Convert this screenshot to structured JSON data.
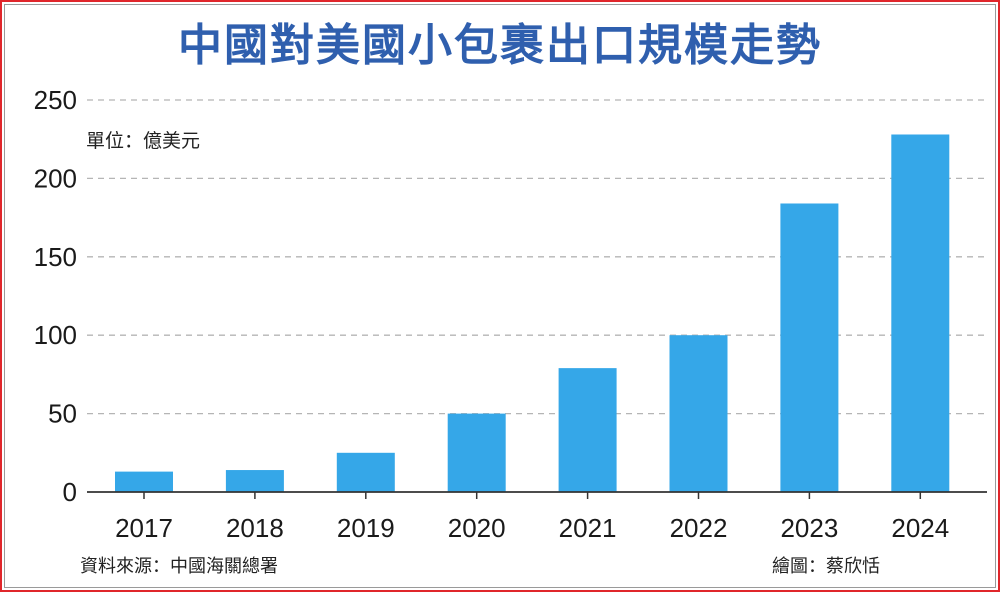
{
  "title": "中國對美國小包裹出口規模走勢",
  "unit_label": "單位：億美元",
  "source": "資料來源：中國海關總署",
  "credit": "繪圖：蔡欣恬",
  "colors": {
    "border": "#e0262b",
    "title": "#2f5fae",
    "bar": "#35a7e8",
    "grid": "#b5b5b5",
    "axis": "#333333"
  },
  "chart_data": {
    "type": "bar",
    "title": "中國對美國小包裹出口規模走勢",
    "xlabel": "",
    "ylabel": "單位：億美元",
    "categories": [
      "2017",
      "2018",
      "2019",
      "2020",
      "2021",
      "2022",
      "2023",
      "2024"
    ],
    "values": [
      13,
      14,
      25,
      50,
      79,
      100,
      184,
      228
    ],
    "ylim": [
      0,
      250
    ],
    "yticks": [
      0,
      50,
      100,
      150,
      200,
      250
    ],
    "grid": true,
    "legend": "none"
  }
}
